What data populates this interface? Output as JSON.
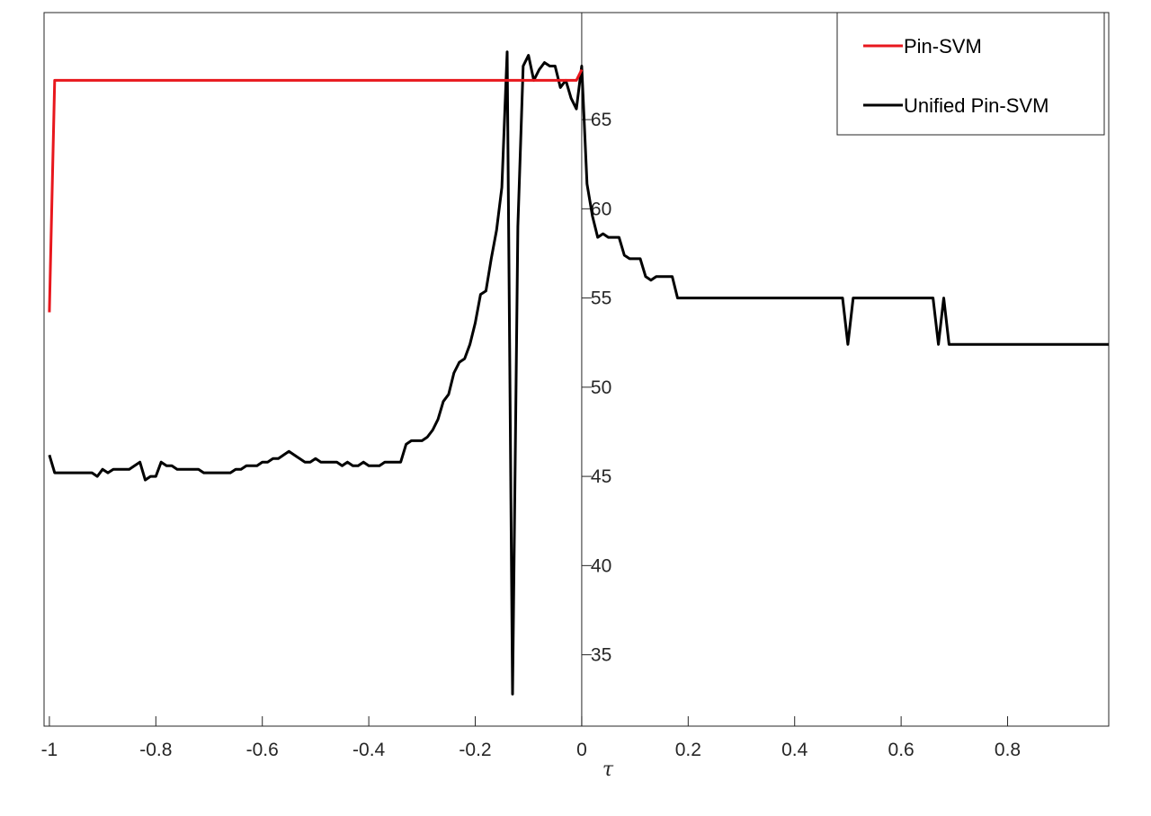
{
  "chart_data": {
    "type": "line",
    "title": "",
    "xlabel": "τ",
    "ylabel": "",
    "xlim": [
      -1.01,
      0.99
    ],
    "ylim": [
      31,
      71
    ],
    "grid": false,
    "legend_position": "top-right",
    "x_ticks": [
      -1,
      -0.8,
      -0.6,
      -0.4,
      -0.2,
      0,
      0.2,
      0.4,
      0.6,
      0.8
    ],
    "x_tick_labels": [
      "-1",
      "-0.8",
      "-0.6",
      "-0.4",
      "-0.2",
      "0",
      "0.2",
      "0.4",
      "0.6",
      "0.8"
    ],
    "y_ticks": [
      35,
      40,
      45,
      50,
      55,
      60,
      65
    ],
    "y_tick_labels": [
      "35",
      "40",
      "45",
      "50",
      "55",
      "60",
      "65"
    ],
    "series": [
      {
        "name": "Pin-SVM",
        "color": "#e8171d",
        "points": [
          [
            -1.0,
            54.2
          ],
          [
            -0.99,
            67.2
          ],
          [
            -0.01,
            67.2
          ],
          [
            0.0,
            67.8
          ]
        ]
      },
      {
        "name": "Unified Pin-SVM",
        "color": "#000000",
        "points": [
          [
            -1.0,
            46.2
          ],
          [
            -0.99,
            45.2
          ],
          [
            -0.98,
            45.2
          ],
          [
            -0.97,
            45.2
          ],
          [
            -0.96,
            45.2
          ],
          [
            -0.95,
            45.2
          ],
          [
            -0.94,
            45.2
          ],
          [
            -0.93,
            45.2
          ],
          [
            -0.92,
            45.2
          ],
          [
            -0.91,
            45.0
          ],
          [
            -0.9,
            45.4
          ],
          [
            -0.89,
            45.2
          ],
          [
            -0.88,
            45.4
          ],
          [
            -0.87,
            45.4
          ],
          [
            -0.86,
            45.4
          ],
          [
            -0.85,
            45.4
          ],
          [
            -0.84,
            45.6
          ],
          [
            -0.83,
            45.8
          ],
          [
            -0.82,
            44.8
          ],
          [
            -0.81,
            45.0
          ],
          [
            -0.8,
            45.0
          ],
          [
            -0.79,
            45.8
          ],
          [
            -0.78,
            45.6
          ],
          [
            -0.77,
            45.6
          ],
          [
            -0.76,
            45.4
          ],
          [
            -0.75,
            45.4
          ],
          [
            -0.74,
            45.4
          ],
          [
            -0.73,
            45.4
          ],
          [
            -0.72,
            45.4
          ],
          [
            -0.71,
            45.2
          ],
          [
            -0.7,
            45.2
          ],
          [
            -0.69,
            45.2
          ],
          [
            -0.68,
            45.2
          ],
          [
            -0.67,
            45.2
          ],
          [
            -0.66,
            45.2
          ],
          [
            -0.65,
            45.4
          ],
          [
            -0.64,
            45.4
          ],
          [
            -0.63,
            45.6
          ],
          [
            -0.62,
            45.6
          ],
          [
            -0.61,
            45.6
          ],
          [
            -0.6,
            45.8
          ],
          [
            -0.59,
            45.8
          ],
          [
            -0.58,
            46.0
          ],
          [
            -0.57,
            46.0
          ],
          [
            -0.56,
            46.2
          ],
          [
            -0.55,
            46.4
          ],
          [
            -0.54,
            46.2
          ],
          [
            -0.53,
            46.0
          ],
          [
            -0.52,
            45.8
          ],
          [
            -0.51,
            45.8
          ],
          [
            -0.5,
            46.0
          ],
          [
            -0.49,
            45.8
          ],
          [
            -0.48,
            45.8
          ],
          [
            -0.47,
            45.8
          ],
          [
            -0.46,
            45.8
          ],
          [
            -0.45,
            45.6
          ],
          [
            -0.44,
            45.8
          ],
          [
            -0.43,
            45.6
          ],
          [
            -0.42,
            45.6
          ],
          [
            -0.41,
            45.8
          ],
          [
            -0.4,
            45.6
          ],
          [
            -0.39,
            45.6
          ],
          [
            -0.38,
            45.6
          ],
          [
            -0.37,
            45.8
          ],
          [
            -0.36,
            45.8
          ],
          [
            -0.35,
            45.8
          ],
          [
            -0.34,
            45.8
          ],
          [
            -0.33,
            46.8
          ],
          [
            -0.32,
            47.0
          ],
          [
            -0.31,
            47.0
          ],
          [
            -0.3,
            47.0
          ],
          [
            -0.29,
            47.2
          ],
          [
            -0.28,
            47.6
          ],
          [
            -0.27,
            48.2
          ],
          [
            -0.26,
            49.2
          ],
          [
            -0.25,
            49.6
          ],
          [
            -0.24,
            50.8
          ],
          [
            -0.23,
            51.4
          ],
          [
            -0.22,
            51.6
          ],
          [
            -0.21,
            52.4
          ],
          [
            -0.2,
            53.6
          ],
          [
            -0.19,
            55.2
          ],
          [
            -0.18,
            55.4
          ],
          [
            -0.17,
            57.2
          ],
          [
            -0.16,
            58.8
          ],
          [
            -0.15,
            61.2
          ],
          [
            -0.14,
            68.8
          ],
          [
            -0.13,
            32.8
          ],
          [
            -0.12,
            59.0
          ],
          [
            -0.11,
            68.0
          ],
          [
            -0.1,
            68.6
          ],
          [
            -0.09,
            67.2
          ],
          [
            -0.08,
            67.8
          ],
          [
            -0.07,
            68.2
          ],
          [
            -0.06,
            68.0
          ],
          [
            -0.05,
            68.0
          ],
          [
            -0.04,
            66.8
          ],
          [
            -0.03,
            67.2
          ],
          [
            -0.02,
            66.2
          ],
          [
            -0.01,
            65.6
          ],
          [
            0.0,
            68.0
          ],
          [
            0.01,
            61.4
          ],
          [
            0.02,
            59.6
          ],
          [
            0.03,
            58.4
          ],
          [
            0.04,
            58.6
          ],
          [
            0.05,
            58.4
          ],
          [
            0.06,
            58.4
          ],
          [
            0.07,
            58.4
          ],
          [
            0.08,
            57.4
          ],
          [
            0.09,
            57.2
          ],
          [
            0.1,
            57.2
          ],
          [
            0.11,
            57.2
          ],
          [
            0.12,
            56.2
          ],
          [
            0.13,
            56.0
          ],
          [
            0.14,
            56.2
          ],
          [
            0.15,
            56.2
          ],
          [
            0.16,
            56.2
          ],
          [
            0.17,
            56.2
          ],
          [
            0.18,
            55.0
          ],
          [
            0.19,
            55.0
          ],
          [
            0.3,
            55.0
          ],
          [
            0.4,
            55.0
          ],
          [
            0.49,
            55.0
          ],
          [
            0.5,
            52.4
          ],
          [
            0.51,
            55.0
          ],
          [
            0.6,
            55.0
          ],
          [
            0.66,
            55.0
          ],
          [
            0.67,
            52.4
          ],
          [
            0.68,
            55.0
          ],
          [
            0.69,
            52.4
          ],
          [
            0.8,
            52.4
          ],
          [
            0.9,
            52.4
          ],
          [
            0.99,
            52.4
          ]
        ]
      }
    ]
  }
}
